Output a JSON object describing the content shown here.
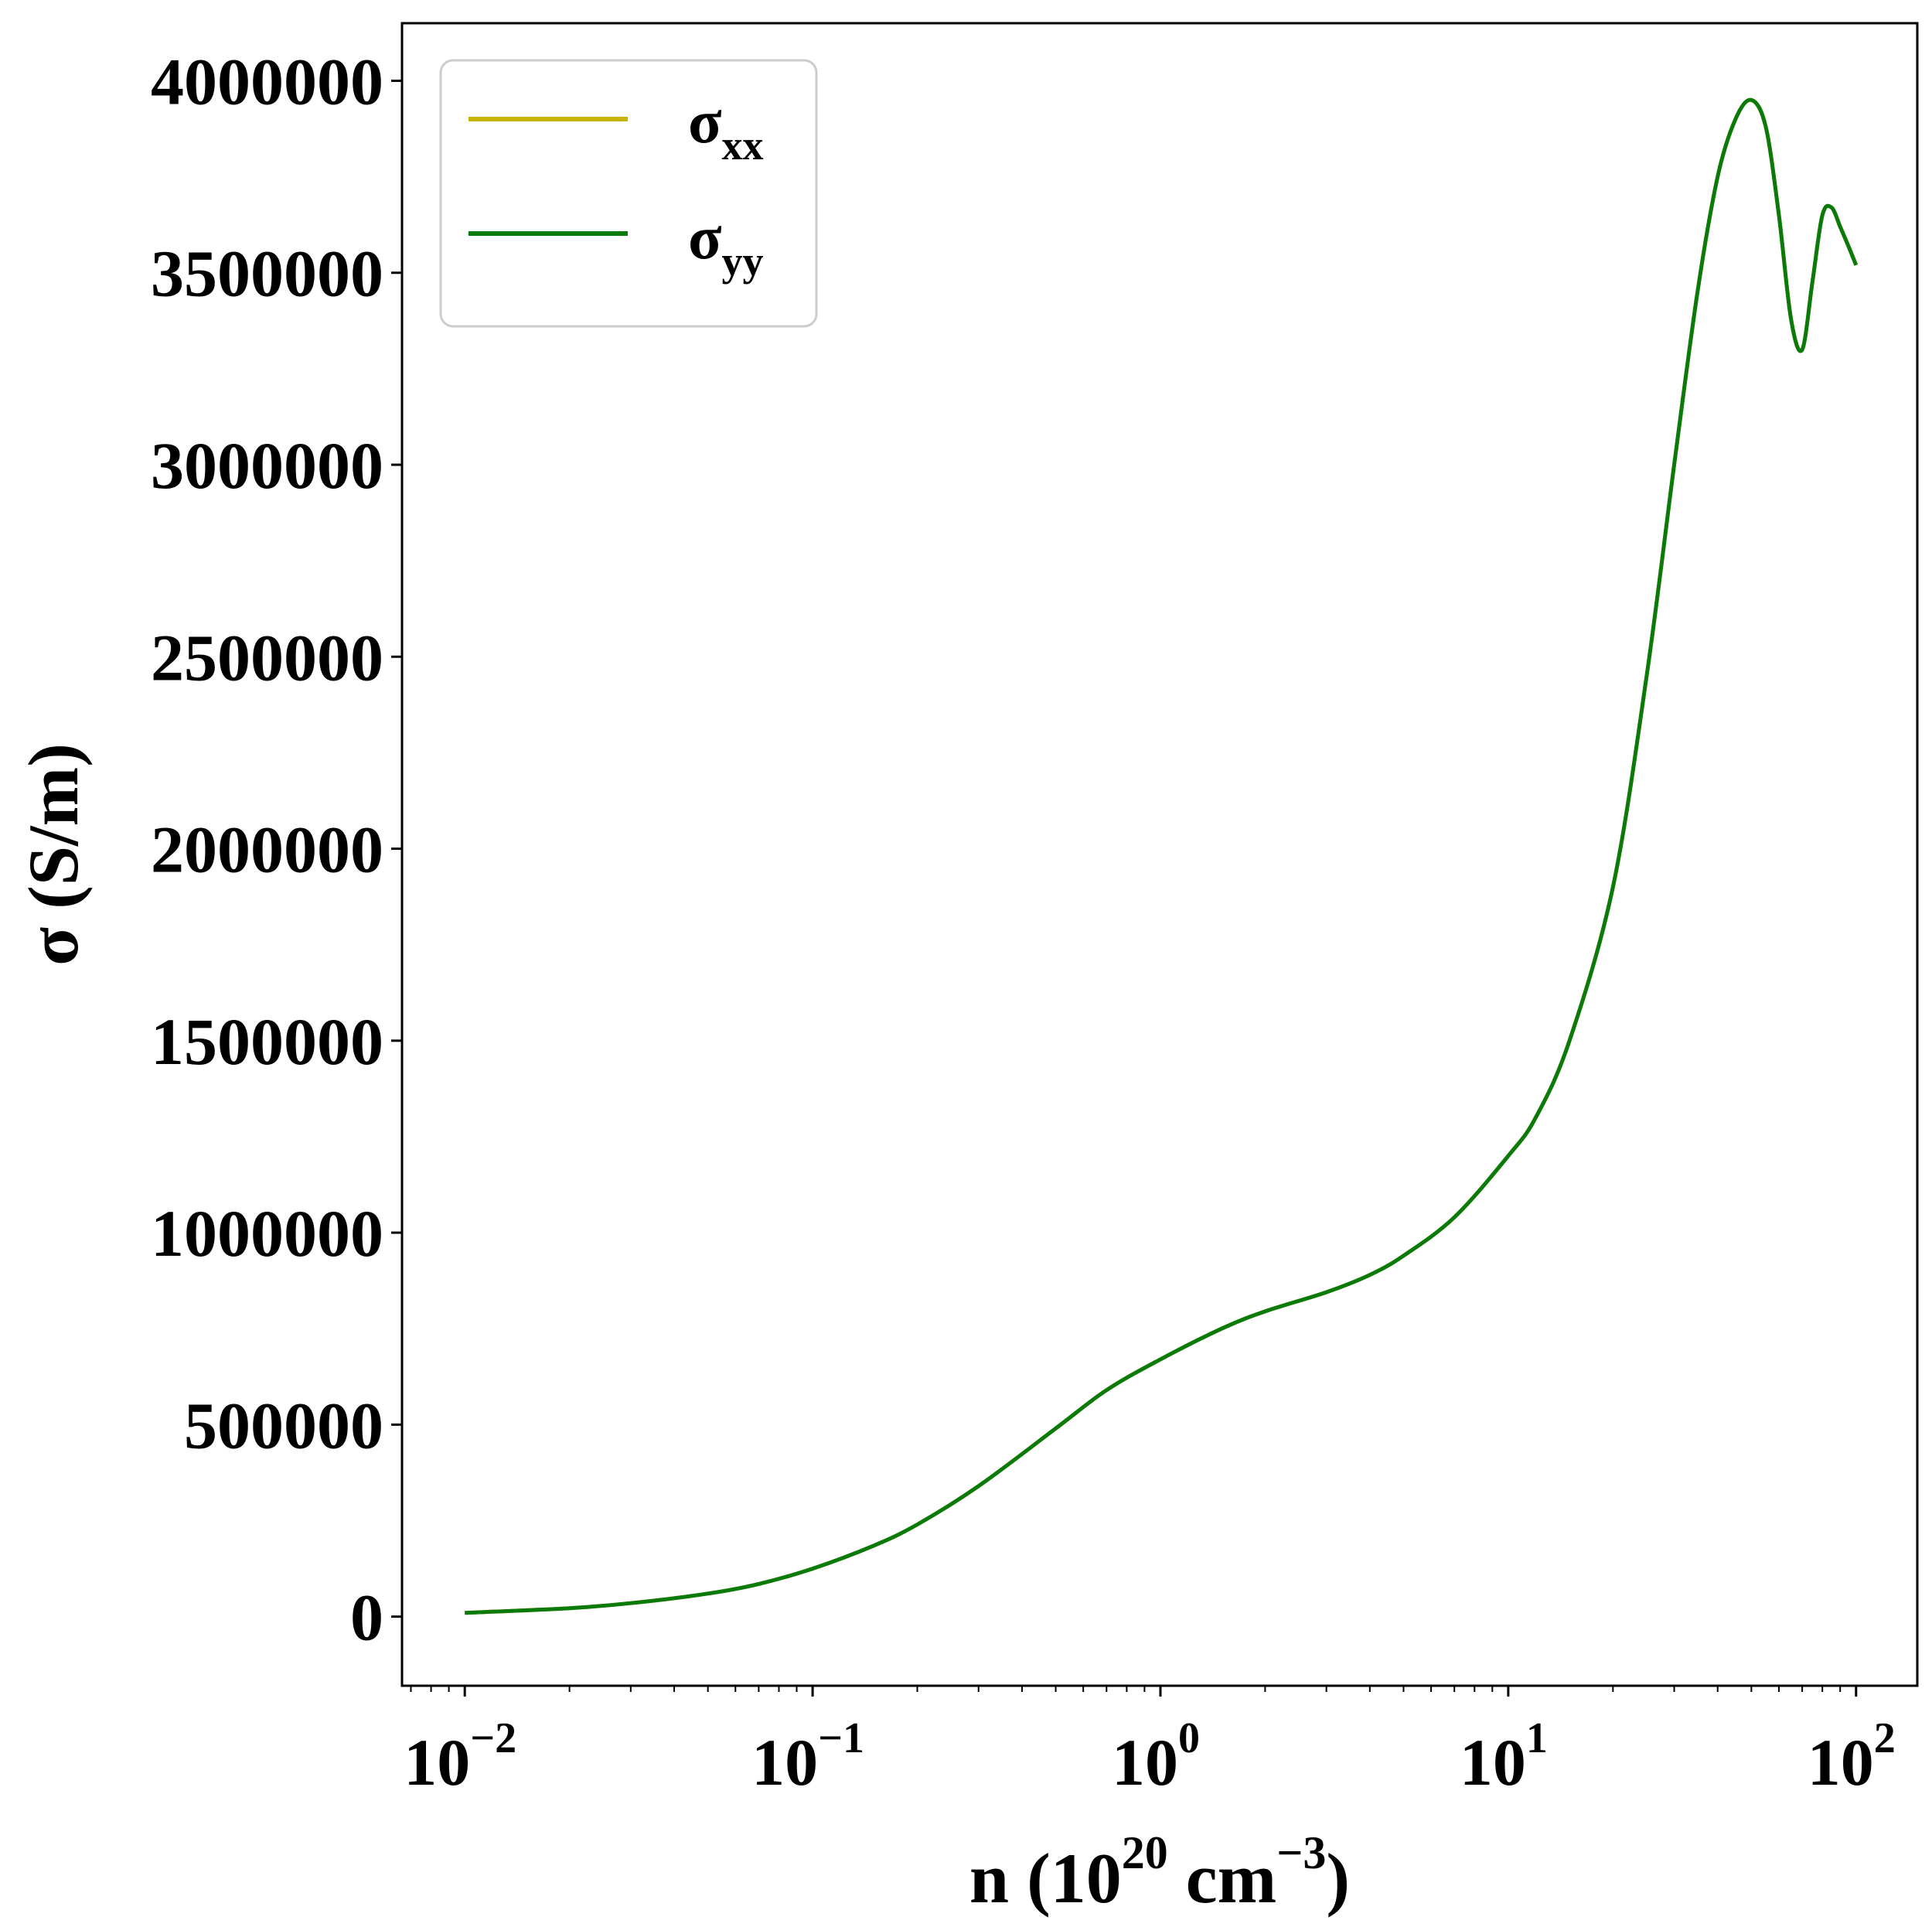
{
  "chart_data": {
    "type": "line",
    "xscale": "log",
    "xlim": [
      0.0066,
      150
    ],
    "ylim": [
      -180000,
      4150000
    ],
    "xlabel": {
      "prefix": "n (10",
      "sup1": "20",
      "mid": " cm",
      "sup2": "−3",
      "suffix": ")"
    },
    "ylabel": "σ (S/m)",
    "yticks": [
      0,
      500000,
      1000000,
      1500000,
      2000000,
      2500000,
      3000000,
      3500000,
      4000000
    ],
    "ytick_labels": [
      "0",
      "500000",
      "1000000",
      "1500000",
      "2000000",
      "2500000",
      "3000000",
      "3500000",
      "4000000"
    ],
    "xticks": [
      {
        "value": 0.01,
        "base": "10",
        "exp": "−2"
      },
      {
        "value": 0.1,
        "base": "10",
        "exp": "−1"
      },
      {
        "value": 1,
        "base": "10",
        "exp": "0"
      },
      {
        "value": 10,
        "base": "10",
        "exp": "1"
      },
      {
        "value": 100,
        "base": "10",
        "exp": "2"
      }
    ],
    "grid": false,
    "legend_position": "top-left",
    "series": [
      {
        "name": "σ",
        "sub": "xx",
        "color": "#c8b400",
        "x": [
          0.01,
          0.02,
          0.03,
          0.05,
          0.07,
          0.1,
          0.15,
          0.2,
          0.3,
          0.5,
          0.7,
          1,
          1.5,
          2,
          3,
          4,
          5,
          7,
          10,
          12,
          15,
          20,
          25,
          30,
          35,
          40,
          45,
          50,
          55,
          60,
          65,
          70,
          75,
          80,
          85,
          90,
          95,
          100
        ],
        "y": [
          10000,
          22000,
          35000,
          60000,
          85000,
          125000,
          185000,
          240000,
          340000,
          490000,
          590000,
          670000,
          750000,
          795000,
          845000,
          890000,
          940000,
          1040000,
          1200000,
          1300000,
          1500000,
          1900000,
          2450000,
          3000000,
          3450000,
          3750000,
          3900000,
          3950000,
          3880000,
          3650000,
          3380000,
          3300000,
          3480000,
          3650000,
          3670000,
          3620000,
          3570000,
          3520000
        ]
      },
      {
        "name": "σ",
        "sub": "yy",
        "color": "#0a7a0a",
        "x": [
          0.01,
          0.02,
          0.03,
          0.05,
          0.07,
          0.1,
          0.15,
          0.2,
          0.3,
          0.5,
          0.7,
          1,
          1.5,
          2,
          3,
          4,
          5,
          7,
          10,
          12,
          15,
          20,
          25,
          30,
          35,
          40,
          45,
          50,
          55,
          60,
          65,
          70,
          75,
          80,
          85,
          90,
          95,
          100
        ],
        "y": [
          10000,
          22000,
          35000,
          60000,
          85000,
          125000,
          185000,
          240000,
          340000,
          490000,
          590000,
          670000,
          750000,
          795000,
          845000,
          890000,
          940000,
          1040000,
          1200000,
          1300000,
          1500000,
          1900000,
          2450000,
          3000000,
          3450000,
          3750000,
          3900000,
          3950000,
          3880000,
          3650000,
          3380000,
          3300000,
          3480000,
          3650000,
          3670000,
          3620000,
          3570000,
          3520000
        ]
      }
    ]
  }
}
